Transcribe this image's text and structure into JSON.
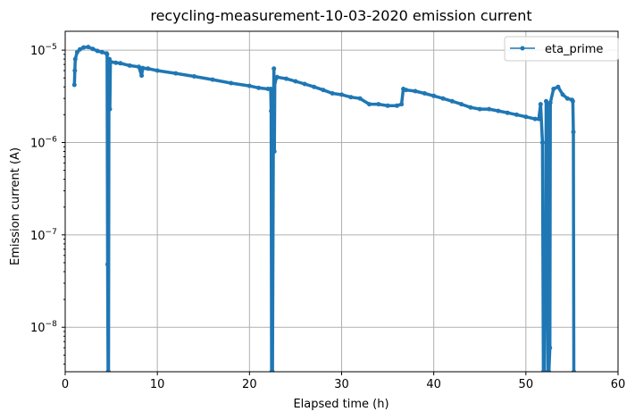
{
  "chart_data": {
    "type": "line",
    "title": "recycling-measurement-10-03-2020 emission current",
    "xlabel": "Elapsed time (h)",
    "ylabel": "Emission current (A)",
    "xlim": [
      0,
      60
    ],
    "ylim": [
      3.3e-09,
      1.6e-05
    ],
    "yscale": "log",
    "x_ticks": [
      0,
      10,
      20,
      30,
      40,
      50,
      60
    ],
    "y_ticks": [
      {
        "value": 1e-08,
        "mantissa": "10",
        "exponent": "−8"
      },
      {
        "value": 1e-07,
        "mantissa": "10",
        "exponent": "−7"
      },
      {
        "value": 1e-06,
        "mantissa": "10",
        "exponent": "−6"
      },
      {
        "value": 1e-05,
        "mantissa": "10",
        "exponent": "−5"
      }
    ],
    "grid": true,
    "legend_position": "top-right",
    "series": [
      {
        "name": "eta_prime",
        "color": "#1f77b4",
        "marker": "circle",
        "points": [
          [
            1.0,
            4.2e-06
          ],
          [
            1.05,
            6e-06
          ],
          [
            1.1,
            8e-06
          ],
          [
            1.3,
            9.5e-06
          ],
          [
            1.6,
            1.02e-05
          ],
          [
            2.0,
            1.07e-05
          ],
          [
            2.5,
            1.08e-05
          ],
          [
            3.0,
            1.03e-05
          ],
          [
            3.5,
            9.8e-06
          ],
          [
            4.0,
            9.5e-06
          ],
          [
            4.5,
            9.2e-06
          ],
          [
            4.55,
            9e-06
          ],
          [
            4.6,
            4.8e-08
          ],
          [
            4.65,
            3.3e-09
          ],
          [
            4.7,
            3.3e-09
          ],
          [
            4.75,
            5.5e-06
          ],
          [
            4.8,
            8e-06
          ],
          [
            4.85,
            2.3e-06
          ],
          [
            4.9,
            7.5e-06
          ],
          [
            5.5,
            7.3e-06
          ],
          [
            6.0,
            7.2e-06
          ],
          [
            7.0,
            6.8e-06
          ],
          [
            8.0,
            6.6e-06
          ],
          [
            8.3,
            5.3e-06
          ],
          [
            8.4,
            6.4e-06
          ],
          [
            9.0,
            6.3e-06
          ],
          [
            10.0,
            6e-06
          ],
          [
            12.0,
            5.6e-06
          ],
          [
            14.0,
            5.2e-06
          ],
          [
            16.0,
            4.8e-06
          ],
          [
            18.0,
            4.4e-06
          ],
          [
            20.0,
            4.1e-06
          ],
          [
            21.0,
            3.9e-06
          ],
          [
            22.0,
            3.8e-06
          ],
          [
            22.3,
            3.8e-06
          ],
          [
            22.35,
            2.2e-06
          ],
          [
            22.4,
            3.3e-09
          ],
          [
            22.5,
            3.3e-09
          ],
          [
            22.6,
            2.2e-06
          ],
          [
            22.65,
            6.3e-06
          ],
          [
            22.7,
            8e-07
          ],
          [
            22.75,
            4.5e-06
          ],
          [
            23.0,
            5.1e-06
          ],
          [
            24.0,
            4.9e-06
          ],
          [
            25.0,
            4.6e-06
          ],
          [
            26.0,
            4.3e-06
          ],
          [
            27.0,
            4e-06
          ],
          [
            28.0,
            3.7e-06
          ],
          [
            29.0,
            3.4e-06
          ],
          [
            30.0,
            3.3e-06
          ],
          [
            31.0,
            3.1e-06
          ],
          [
            32.0,
            3e-06
          ],
          [
            33.0,
            2.6e-06
          ],
          [
            34.0,
            2.6e-06
          ],
          [
            35.0,
            2.5e-06
          ],
          [
            36.0,
            2.5e-06
          ],
          [
            36.5,
            2.6e-06
          ],
          [
            36.7,
            3.8e-06
          ],
          [
            37.0,
            3.7e-06
          ],
          [
            38.0,
            3.6e-06
          ],
          [
            39.0,
            3.4e-06
          ],
          [
            40.0,
            3.2e-06
          ],
          [
            41.0,
            3e-06
          ],
          [
            42.0,
            2.8e-06
          ],
          [
            43.0,
            2.6e-06
          ],
          [
            44.0,
            2.4e-06
          ],
          [
            45.0,
            2.3e-06
          ],
          [
            46.0,
            2.3e-06
          ],
          [
            47.0,
            2.2e-06
          ],
          [
            48.0,
            2.1e-06
          ],
          [
            49.0,
            2e-06
          ],
          [
            50.0,
            1.9e-06
          ],
          [
            51.0,
            1.8e-06
          ],
          [
            51.4,
            1.8e-06
          ],
          [
            51.6,
            2.6e-06
          ],
          [
            51.8,
            1e-06
          ],
          [
            51.9,
            3.3e-09
          ],
          [
            52.0,
            3.3e-09
          ],
          [
            52.1,
            3e-08
          ],
          [
            52.15,
            2e-08
          ],
          [
            52.2,
            2.8e-06
          ],
          [
            52.3,
            2.6e-06
          ],
          [
            52.35,
            1e-06
          ],
          [
            52.4,
            3.3e-09
          ],
          [
            52.5,
            3.3e-09
          ],
          [
            52.6,
            6e-09
          ],
          [
            52.65,
            2.7e-06
          ],
          [
            53.0,
            3.8e-06
          ],
          [
            53.5,
            4e-06
          ],
          [
            54.0,
            3.3e-06
          ],
          [
            54.5,
            3e-06
          ],
          [
            55.0,
            2.9e-06
          ],
          [
            55.1,
            2.8e-06
          ],
          [
            55.15,
            1.3e-06
          ],
          [
            55.2,
            3.3e-09
          ]
        ]
      }
    ]
  }
}
